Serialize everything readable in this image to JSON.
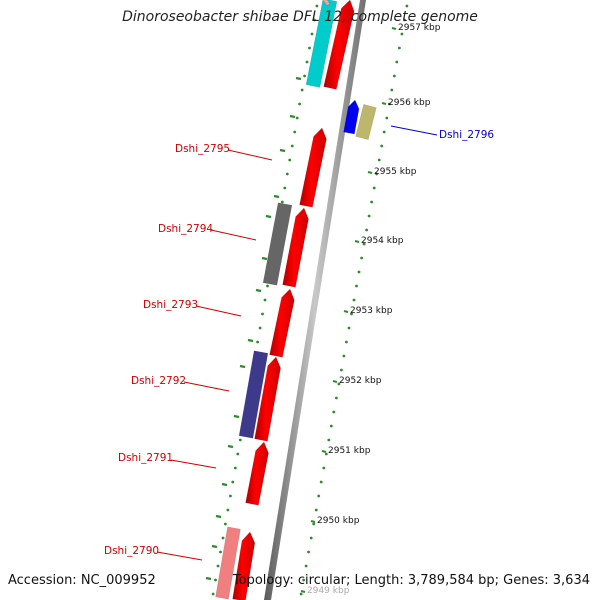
{
  "title": "Dinoroseobacter shibae DFL 12, complete genome",
  "footer": {
    "accession": "Accession: NC_009952",
    "topology": "Topology: circular; Length: 3,789,584 bp; Genes: 3,634"
  },
  "colors": {
    "backbone": "#8a8a8a",
    "gc_dots": "#2e8b2e",
    "cds": "#ff0000",
    "label_default": "#cc0000",
    "label_highlight": "#0000cc",
    "tick_text": "#111111",
    "faded_tick_text": "#aaaaaa"
  },
  "scale_ticks": [
    {
      "label": "2957 kbp"
    },
    {
      "label": "2956 kbp"
    },
    {
      "label": "2955 kbp"
    },
    {
      "label": "2954 kbp"
    },
    {
      "label": "2953 kbp"
    },
    {
      "label": "2952 kbp"
    },
    {
      "label": "2951 kbp"
    },
    {
      "label": "2950 kbp"
    },
    {
      "label": "2949 kbp",
      "faded": true
    }
  ],
  "gene_labels": [
    {
      "label": "Dshi_2796",
      "color": "#0000cc"
    },
    {
      "label": "Dshi_2795",
      "color": "#cc0000"
    },
    {
      "label": "Dshi_2794",
      "color": "#cc0000"
    },
    {
      "label": "Dshi_2793",
      "color": "#cc0000"
    },
    {
      "label": "Dshi_2792",
      "color": "#cc0000"
    },
    {
      "label": "Dshi_2791",
      "color": "#cc0000"
    },
    {
      "label": "Dshi_2790",
      "color": "#cc0000"
    }
  ],
  "feature_tracks": [
    {
      "name": "cog-cyan",
      "color": "#00cccc"
    },
    {
      "name": "cog-blue",
      "color": "#0000ee"
    },
    {
      "name": "cog-khaki",
      "color": "#bdb76b"
    },
    {
      "name": "cog-gray",
      "color": "#666666"
    },
    {
      "name": "cog-slate",
      "color": "#3d3a8c"
    },
    {
      "name": "cog-pink",
      "color": "#f08080"
    }
  ]
}
